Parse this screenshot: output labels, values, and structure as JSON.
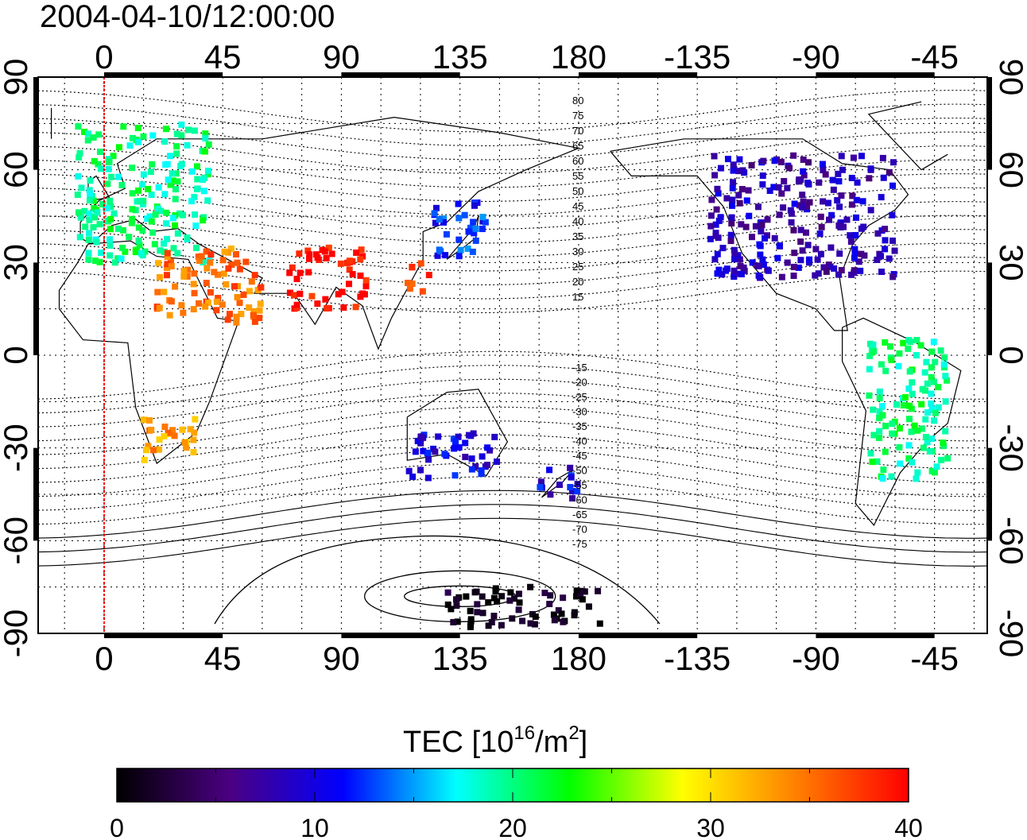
{
  "timestamp": "2004-04-10/12:00:00",
  "top_lon_ticks": [
    "0",
    "45",
    "90",
    "135",
    "180",
    "-135",
    "-90",
    "-45"
  ],
  "bottom_lon_ticks": [
    "0",
    "45",
    "90",
    "135",
    "180",
    "-135",
    "-90",
    "-45"
  ],
  "lat_ticks": [
    "90",
    "60",
    "30",
    "0",
    "-30",
    "-60",
    "-90"
  ],
  "contour_labels_north": [
    "80",
    "75",
    "70",
    "65",
    "60",
    "55",
    "50",
    "45",
    "40",
    "35",
    "30",
    "25",
    "20",
    "15"
  ],
  "contour_labels_south": [
    "-15",
    "-20",
    "-25",
    "-30",
    "-35",
    "-40",
    "-45",
    "-50",
    "-55",
    "-60",
    "-65",
    "-70",
    "-75"
  ],
  "colorbar": {
    "title_prefix": "TEC  [10",
    "title_exp": "16",
    "title_mid": "/m",
    "title_exp2": "2",
    "title_suffix": "]",
    "min": 0,
    "max": 40,
    "tick_labels": [
      "0",
      "10",
      "20",
      "30",
      "40"
    ],
    "colors": [
      "#000000",
      "#4b0082",
      "#0000ff",
      "#00ffff",
      "#00ff00",
      "#ffff00",
      "#ff8000",
      "#ff0000"
    ]
  },
  "meridian_line_color": "#ff0000",
  "map_data": {
    "type": "geographic scatter (TEC)",
    "lon_range": [
      -25,
      335
    ],
    "lat_range": [
      -90,
      90
    ],
    "regions": [
      {
        "name": "Europe",
        "lon": [
          -10,
          40
        ],
        "lat": [
          30,
          75
        ],
        "tec": 20
      },
      {
        "name": "North Africa / Middle East",
        "lon": [
          20,
          60
        ],
        "lat": [
          10,
          35
        ],
        "tec": 35
      },
      {
        "name": "India / Tibet",
        "lon": [
          70,
          100
        ],
        "lat": [
          15,
          35
        ],
        "tec": 40
      },
      {
        "name": "China coast",
        "lon": [
          115,
          125
        ],
        "lat": [
          20,
          30
        ],
        "tec": 38
      },
      {
        "name": "Japan",
        "lon": [
          125,
          145
        ],
        "lat": [
          30,
          50
        ],
        "tec": 12
      },
      {
        "name": "North America",
        "lon": [
          230,
          300
        ],
        "lat": [
          25,
          65
        ],
        "tec": 8
      },
      {
        "name": "South America",
        "lon": [
          290,
          320
        ],
        "lat": [
          -40,
          5
        ],
        "tec": 20
      },
      {
        "name": "Southern Africa",
        "lon": [
          15,
          35
        ],
        "lat": [
          -35,
          -20
        ],
        "tec": 33
      },
      {
        "name": "Australia",
        "lon": [
          115,
          150
        ],
        "lat": [
          -40,
          -25
        ],
        "tec": 10
      },
      {
        "name": "New Zealand",
        "lon": [
          165,
          180
        ],
        "lat": [
          -47,
          -35
        ],
        "tec": 10
      },
      {
        "name": "Antarctica",
        "lon": [
          130,
          190
        ],
        "lat": [
          -88,
          -75
        ],
        "tec": 1
      }
    ]
  }
}
